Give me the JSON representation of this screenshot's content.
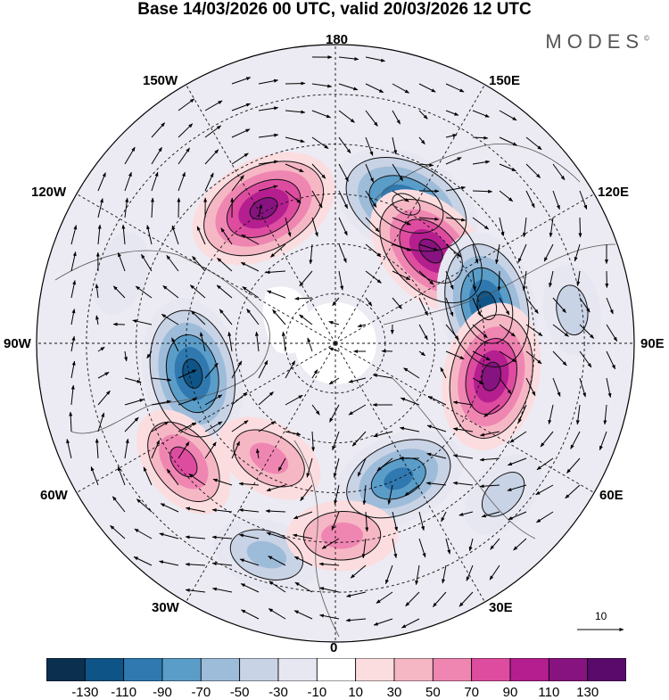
{
  "title": "Base 14/03/2026 00 UTC, valid 20/03/2026 12 UTC",
  "brand": "MODES",
  "brand_mark": "©",
  "longitude_labels": {
    "top": "180",
    "bottom": "0",
    "left": "90W",
    "right": "90E",
    "upper_left_1": "150W",
    "upper_left_2": "120W",
    "upper_right_1": "150E",
    "upper_right_2": "120E",
    "lower_left_1": "60W",
    "lower_left_2": "30W",
    "lower_right_1": "60E",
    "lower_right_2": "30E"
  },
  "vector_reference": {
    "label": "10"
  },
  "colorbar": {
    "ticks": [
      "-130",
      "-110",
      "-90",
      "-70",
      "-50",
      "-30",
      "-10",
      "10",
      "30",
      "50",
      "70",
      "90",
      "110",
      "130"
    ],
    "colors": [
      "#0b2f4f",
      "#0f5487",
      "#2f79b0",
      "#5b9dc9",
      "#9dbcda",
      "#c9d3e6",
      "#e7e7f2",
      "#ffffff",
      "#fbdde0",
      "#f6b7c5",
      "#ef86b2",
      "#de4ca0",
      "#b41e8f",
      "#86137f",
      "#5a0a6b"
    ]
  },
  "anomaly_centers": [
    {
      "lon": 153,
      "lat": 43,
      "value": -120
    },
    {
      "lon": -152,
      "lat": 44,
      "value": 120
    },
    {
      "lon": 134,
      "lat": 50,
      "value": 110
    },
    {
      "lon": 104,
      "lat": 43,
      "value": -115
    },
    {
      "lon": 78,
      "lat": 42,
      "value": 115
    },
    {
      "lon": 25,
      "lat": 45,
      "value": -95
    },
    {
      "lon": -78,
      "lat": 46,
      "value": -120
    },
    {
      "lon": -52,
      "lat": 32,
      "value": 70
    },
    {
      "lon": -30,
      "lat": 50,
      "value": 60
    },
    {
      "lon": -18,
      "lat": 23,
      "value": -55
    },
    {
      "lon": 2,
      "lat": 32,
      "value": 60
    },
    {
      "lon": 48,
      "lat": 22,
      "value": -35
    },
    {
      "lon": 98,
      "lat": 18,
      "value": -30
    },
    {
      "lon": -108,
      "lat": 22,
      "value": -20
    }
  ]
}
